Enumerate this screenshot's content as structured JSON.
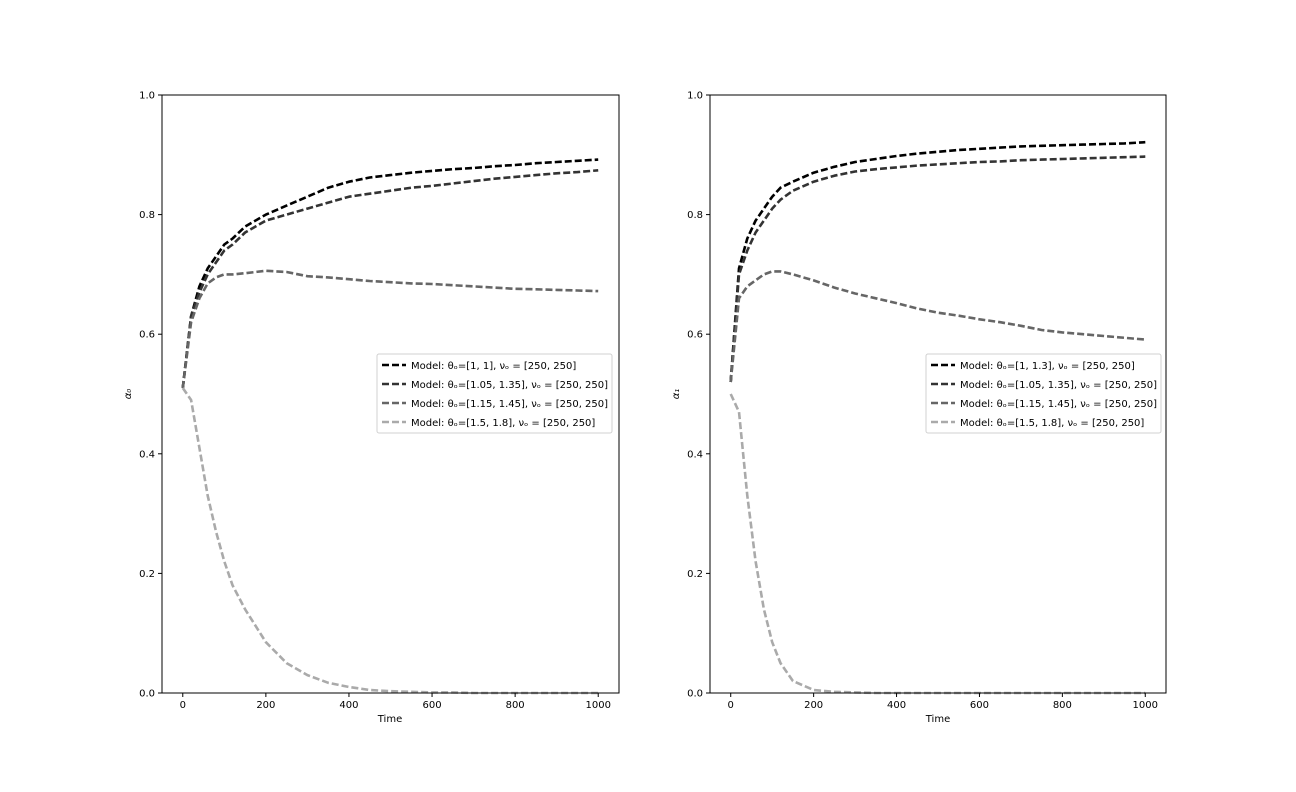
{
  "chart_data": [
    {
      "type": "line",
      "xlabel": "Time",
      "ylabel": "α₀",
      "xlim": [
        -50,
        1050
      ],
      "ylim": [
        0.0,
        1.0
      ],
      "xticks": [
        "0",
        "200",
        "400",
        "600",
        "800",
        "1000"
      ],
      "yticks": [
        "0.0",
        "0.2",
        "0.4",
        "0.6",
        "0.8",
        "1.0"
      ],
      "grid": false,
      "legend_position": "center-right",
      "x": [
        0,
        20,
        40,
        60,
        80,
        100,
        120,
        150,
        200,
        250,
        300,
        350,
        400,
        450,
        500,
        550,
        600,
        650,
        700,
        750,
        800,
        850,
        900,
        950,
        1000
      ],
      "series": [
        {
          "name": "Model: θₒ=[1, 1], νₒ = [250, 250]",
          "color": "#000000",
          "values": [
            0.51,
            0.63,
            0.68,
            0.71,
            0.73,
            0.75,
            0.76,
            0.78,
            0.8,
            0.815,
            0.83,
            0.845,
            0.855,
            0.862,
            0.866,
            0.87,
            0.873,
            0.876,
            0.878,
            0.881,
            0.883,
            0.886,
            0.888,
            0.89,
            0.892
          ]
        },
        {
          "name": "Model: θₒ=[1.05, 1.35], νₒ = [250, 250]",
          "color": "#333333",
          "values": [
            0.51,
            0.63,
            0.67,
            0.7,
            0.72,
            0.74,
            0.75,
            0.77,
            0.79,
            0.8,
            0.81,
            0.82,
            0.83,
            0.835,
            0.84,
            0.845,
            0.848,
            0.852,
            0.856,
            0.86,
            0.863,
            0.866,
            0.869,
            0.871,
            0.874
          ]
        },
        {
          "name": "Model: θₒ=[1.15, 1.45], νₒ = [250, 250]",
          "color": "#666666",
          "values": [
            0.51,
            0.62,
            0.66,
            0.685,
            0.695,
            0.7,
            0.7,
            0.702,
            0.706,
            0.704,
            0.697,
            0.695,
            0.692,
            0.689,
            0.687,
            0.685,
            0.684,
            0.682,
            0.68,
            0.678,
            0.676,
            0.675,
            0.674,
            0.673,
            0.672
          ]
        },
        {
          "name": "Model: θₒ=[1.5, 1.8], νₒ = [250, 250]",
          "color": "#aaaaaa",
          "values": [
            0.51,
            0.49,
            0.41,
            0.33,
            0.27,
            0.22,
            0.18,
            0.14,
            0.085,
            0.05,
            0.03,
            0.017,
            0.01,
            0.005,
            0.003,
            0.002,
            0.001,
            0.001,
            0.0,
            0.0,
            0.0,
            0.0,
            0.0,
            0.0,
            0.0
          ]
        }
      ]
    },
    {
      "type": "line",
      "xlabel": "Time",
      "ylabel": "α₁",
      "xlim": [
        -50,
        1050
      ],
      "ylim": [
        0.0,
        1.0
      ],
      "xticks": [
        "0",
        "200",
        "400",
        "600",
        "800",
        "1000"
      ],
      "yticks": [
        "0.0",
        "0.2",
        "0.4",
        "0.6",
        "0.8",
        "1.0"
      ],
      "grid": false,
      "legend_position": "center-right",
      "x": [
        0,
        20,
        40,
        60,
        80,
        100,
        120,
        150,
        200,
        250,
        300,
        350,
        400,
        450,
        500,
        550,
        600,
        650,
        700,
        750,
        800,
        850,
        900,
        950,
        1000
      ],
      "series": [
        {
          "name": "Model: θₒ=[1, 1.3], νₒ = [250, 250]",
          "color": "#000000",
          "values": [
            0.52,
            0.71,
            0.76,
            0.79,
            0.81,
            0.83,
            0.845,
            0.855,
            0.87,
            0.88,
            0.888,
            0.893,
            0.898,
            0.902,
            0.905,
            0.908,
            0.91,
            0.912,
            0.914,
            0.915,
            0.916,
            0.917,
            0.918,
            0.919,
            0.921
          ]
        },
        {
          "name": "Model: θₒ=[1.05, 1.35], νₒ = [250, 250]",
          "color": "#333333",
          "values": [
            0.52,
            0.7,
            0.74,
            0.77,
            0.79,
            0.81,
            0.825,
            0.84,
            0.855,
            0.865,
            0.872,
            0.876,
            0.879,
            0.882,
            0.884,
            0.886,
            0.888,
            0.889,
            0.891,
            0.892,
            0.893,
            0.894,
            0.895,
            0.896,
            0.897
          ]
        },
        {
          "name": "Model: θₒ=[1.15, 1.45], νₒ = [250, 250]",
          "color": "#666666",
          "values": [
            0.52,
            0.66,
            0.68,
            0.69,
            0.7,
            0.705,
            0.705,
            0.7,
            0.69,
            0.678,
            0.668,
            0.66,
            0.652,
            0.643,
            0.636,
            0.631,
            0.625,
            0.62,
            0.614,
            0.607,
            0.603,
            0.6,
            0.597,
            0.594,
            0.591
          ]
        },
        {
          "name": "Model: θₒ=[1.5, 1.8], νₒ = [250, 250]",
          "color": "#aaaaaa",
          "values": [
            0.5,
            0.47,
            0.33,
            0.22,
            0.14,
            0.085,
            0.05,
            0.02,
            0.005,
            0.002,
            0.001,
            0.0,
            0.0,
            0.0,
            0.0,
            0.0,
            0.0,
            0.0,
            0.0,
            0.0,
            0.0,
            0.0,
            0.0,
            0.0,
            0.0
          ]
        }
      ]
    }
  ]
}
